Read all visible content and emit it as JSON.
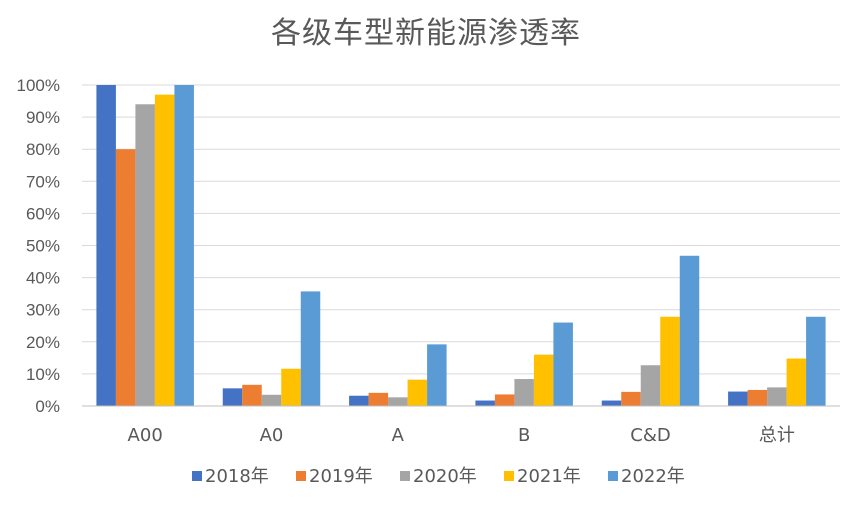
{
  "chart_data": {
    "type": "bar",
    "title": "各级车型新能源渗透率",
    "categories": [
      "A00",
      "A0",
      "A",
      "B",
      "C&D",
      "总计"
    ],
    "series": [
      {
        "name": "2018年",
        "color": "#4472c4",
        "values": [
          100,
          5.5,
          3.2,
          1.7,
          1.7,
          4.5
        ]
      },
      {
        "name": "2019年",
        "color": "#ed7d31",
        "values": [
          80,
          6.6,
          4.1,
          3.6,
          4.4,
          5
        ]
      },
      {
        "name": "2020年",
        "color": "#a5a5a5",
        "values": [
          94,
          3.5,
          2.7,
          8.4,
          12.7,
          5.8
        ]
      },
      {
        "name": "2021年",
        "color": "#ffc000",
        "values": [
          97,
          11.6,
          8.2,
          16,
          27.8,
          14.8
        ]
      },
      {
        "name": "2022年",
        "color": "#5b9bd5",
        "values": [
          100,
          35.7,
          19.2,
          26,
          46.8,
          27.8
        ]
      }
    ],
    "ylim": [
      0,
      100
    ],
    "yticks": [
      "0%",
      "10%",
      "20%",
      "30%",
      "40%",
      "50%",
      "60%",
      "70%",
      "80%",
      "90%",
      "100%"
    ],
    "grid": true,
    "legend_position": "bottom"
  }
}
